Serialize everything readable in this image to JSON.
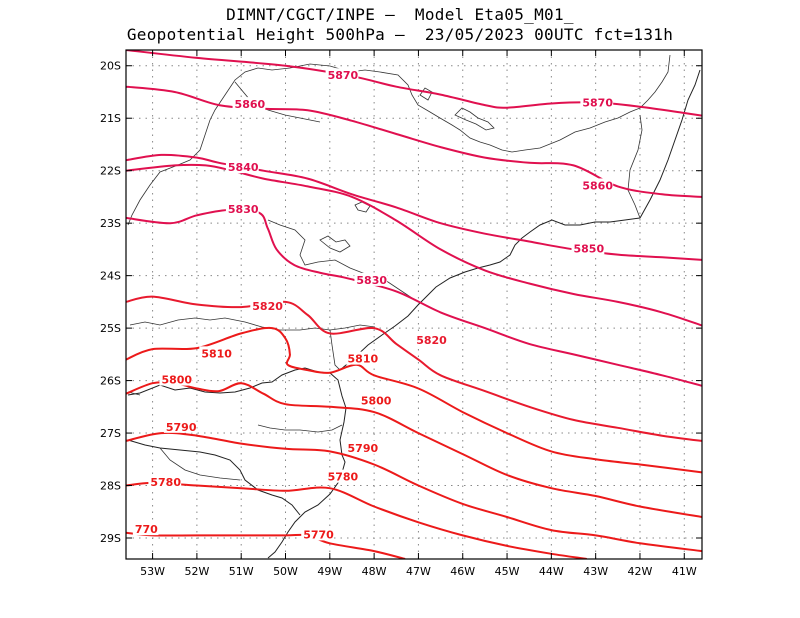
{
  "header": {
    "line1": "DIMNT/CGCT/INPE –  Model Eta05_M01_",
    "line2": "Geopotential Height 500hPa –  23/05/2023 00UTC fct=131h"
  },
  "map": {
    "lon_range": [
      -53.6,
      -40.6
    ],
    "lat_range": [
      -29.4,
      -19.7
    ],
    "lon_ticks": [
      {
        "value": -53,
        "label": "53W"
      },
      {
        "value": -52,
        "label": "52W"
      },
      {
        "value": -51,
        "label": "51W"
      },
      {
        "value": -50,
        "label": "50W"
      },
      {
        "value": -49,
        "label": "49W"
      },
      {
        "value": -48,
        "label": "48W"
      },
      {
        "value": -47,
        "label": "47W"
      },
      {
        "value": -46,
        "label": "46W"
      },
      {
        "value": -45,
        "label": "45W"
      },
      {
        "value": -44,
        "label": "44W"
      },
      {
        "value": -43,
        "label": "43W"
      },
      {
        "value": -42,
        "label": "42W"
      },
      {
        "value": -41,
        "label": "41W"
      }
    ],
    "lat_ticks": [
      {
        "value": -20,
        "label": "20S"
      },
      {
        "value": -21,
        "label": "21S"
      },
      {
        "value": -22,
        "label": "22S"
      },
      {
        "value": -23,
        "label": "23S"
      },
      {
        "value": -24,
        "label": "24S"
      },
      {
        "value": -25,
        "label": "25S"
      },
      {
        "value": -26,
        "label": "26S"
      },
      {
        "value": -27,
        "label": "27S"
      },
      {
        "value": -28,
        "label": "28S"
      },
      {
        "value": -29,
        "label": "29S"
      }
    ],
    "grid": "dotted",
    "contours": [
      {
        "level": "5870",
        "color": "#e0104f",
        "points": [
          [
            -53.6,
            -19.7
          ],
          [
            -52,
            -19.85
          ],
          [
            -50,
            -20.0
          ],
          [
            -48.5,
            -20.2
          ],
          [
            -47.5,
            -20.4
          ],
          [
            -46.5,
            -20.55
          ],
          [
            -45.5,
            -20.75
          ],
          [
            -45,
            -20.8
          ],
          [
            -44,
            -20.72
          ],
          [
            -43,
            -20.7
          ],
          [
            -42,
            -20.78
          ],
          [
            -41,
            -20.9
          ],
          [
            -40.6,
            -20.95
          ]
        ],
        "labels": [
          {
            "text": "5870",
            "lon": -49.05,
            "lat": -20.2
          },
          {
            "text": "5870",
            "lon": -43.3,
            "lat": -20.72
          }
        ]
      },
      {
        "level": "5860",
        "color": "#e0104f",
        "points": [
          [
            -53.6,
            -20.4
          ],
          [
            -52.5,
            -20.5
          ],
          [
            -51.5,
            -20.75
          ],
          [
            -50.5,
            -20.82
          ],
          [
            -49.5,
            -20.85
          ],
          [
            -48.5,
            -21.05
          ],
          [
            -47.5,
            -21.3
          ],
          [
            -46.5,
            -21.55
          ],
          [
            -45.5,
            -21.75
          ],
          [
            -44.5,
            -21.85
          ],
          [
            -43.5,
            -21.9
          ],
          [
            -42.5,
            -22.3
          ],
          [
            -41.5,
            -22.45
          ],
          [
            -40.6,
            -22.5
          ]
        ],
        "labels": [
          {
            "text": "5860",
            "lon": -51.15,
            "lat": -20.75
          },
          {
            "text": "5860",
            "lon": -43.3,
            "lat": -22.3
          }
        ]
      },
      {
        "level": "5850",
        "color": "#e0104f",
        "points": [
          [
            -53.6,
            -21.8
          ],
          [
            -52.8,
            -21.7
          ],
          [
            -52,
            -21.75
          ],
          [
            -51.5,
            -21.85
          ],
          [
            -50.5,
            -22.0
          ],
          [
            -49.5,
            -22.15
          ],
          [
            -48.5,
            -22.45
          ],
          [
            -47.5,
            -22.7
          ],
          [
            -46.5,
            -23.0
          ],
          [
            -45.5,
            -23.2
          ],
          [
            -44.5,
            -23.35
          ],
          [
            -43.5,
            -23.5
          ],
          [
            -42.5,
            -23.6
          ],
          [
            -41.5,
            -23.65
          ],
          [
            -40.6,
            -23.7
          ]
        ],
        "labels": [
          {
            "text": "5850",
            "lon": -43.5,
            "lat": -23.5
          }
        ]
      },
      {
        "level": "5840",
        "color": "#e0104f",
        "points": [
          [
            -53.6,
            -22.0
          ],
          [
            -52.5,
            -21.9
          ],
          [
            -51.8,
            -21.9
          ],
          [
            -51.2,
            -22.0
          ],
          [
            -50.5,
            -22.15
          ],
          [
            -49.5,
            -22.3
          ],
          [
            -48.5,
            -22.5
          ],
          [
            -47.5,
            -22.95
          ],
          [
            -46.5,
            -23.5
          ],
          [
            -45.5,
            -23.9
          ],
          [
            -44.5,
            -24.15
          ],
          [
            -43.5,
            -24.35
          ],
          [
            -42.5,
            -24.5
          ],
          [
            -41.5,
            -24.7
          ],
          [
            -40.6,
            -24.95
          ]
        ],
        "labels": [
          {
            "text": "5840",
            "lon": -51.3,
            "lat": -21.95
          }
        ]
      },
      {
        "level": "5830",
        "color": "#e0104f",
        "points": [
          [
            -53.6,
            -22.9
          ],
          [
            -52.6,
            -23.0
          ],
          [
            -52,
            -22.85
          ],
          [
            -51.3,
            -22.75
          ],
          [
            -50.6,
            -22.8
          ],
          [
            -50.4,
            -23.1
          ],
          [
            -50.2,
            -23.5
          ],
          [
            -49.8,
            -23.8
          ],
          [
            -49.2,
            -23.95
          ],
          [
            -48.6,
            -24.05
          ],
          [
            -47.5,
            -24.3
          ],
          [
            -46.5,
            -24.7
          ],
          [
            -45.5,
            -25.0
          ],
          [
            -44.5,
            -25.3
          ],
          [
            -43.5,
            -25.5
          ],
          [
            -42.5,
            -25.7
          ],
          [
            -41.5,
            -25.9
          ],
          [
            -40.6,
            -26.1
          ]
        ],
        "labels": [
          {
            "text": "5830",
            "lon": -51.3,
            "lat": -22.75
          },
          {
            "text": "5830",
            "lon": -48.4,
            "lat": -24.1
          }
        ]
      },
      {
        "level": "5820",
        "color": "#e81a2e",
        "points": [
          [
            -53.6,
            -24.5
          ],
          [
            -53,
            -24.4
          ],
          [
            -52,
            -24.55
          ],
          [
            -51,
            -24.6
          ],
          [
            -50,
            -24.5
          ],
          [
            -49.5,
            -24.75
          ],
          [
            -49,
            -25.1
          ],
          [
            -48,
            -25.0
          ],
          [
            -47.5,
            -25.3
          ],
          [
            -47,
            -25.6
          ],
          [
            -46.5,
            -25.9
          ],
          [
            -45.5,
            -26.2
          ],
          [
            -44.5,
            -26.5
          ],
          [
            -43.5,
            -26.75
          ],
          [
            -42.5,
            -26.9
          ],
          [
            -41.5,
            -27.05
          ],
          [
            -40.6,
            -27.15
          ]
        ],
        "labels": [
          {
            "text": "5820",
            "lon": -50.75,
            "lat": -24.6
          },
          {
            "text": "5820",
            "lon": -47.05,
            "lat": -25.25
          }
        ]
      },
      {
        "level": "5810",
        "color": "#ec1a1a",
        "points": [
          [
            -53.6,
            -25.6
          ],
          [
            -53,
            -25.4
          ],
          [
            -52,
            -25.38
          ],
          [
            -51,
            -25.1
          ],
          [
            -50.3,
            -25.0
          ],
          [
            -50,
            -25.2
          ],
          [
            -49.9,
            -25.5
          ],
          [
            -49.95,
            -25.7
          ],
          [
            -49.5,
            -25.8
          ],
          [
            -49,
            -25.85
          ],
          [
            -48.4,
            -25.7
          ],
          [
            -48,
            -25.9
          ],
          [
            -47,
            -26.15
          ],
          [
            -46,
            -26.6
          ],
          [
            -45,
            -27.0
          ],
          [
            -44,
            -27.35
          ],
          [
            -43,
            -27.5
          ],
          [
            -42,
            -27.6
          ],
          [
            -40.6,
            -27.75
          ]
        ],
        "labels": [
          {
            "text": "5810",
            "lon": -51.9,
            "lat": -25.5
          },
          {
            "text": "5810",
            "lon": -48.6,
            "lat": -25.6
          }
        ]
      },
      {
        "level": "5800",
        "color": "#ec1a1a",
        "points": [
          [
            -53.6,
            -26.25
          ],
          [
            -53,
            -26.05
          ],
          [
            -52.5,
            -26.05
          ],
          [
            -52,
            -26.15
          ],
          [
            -51.5,
            -26.2
          ],
          [
            -51,
            -26.05
          ],
          [
            -50.5,
            -26.25
          ],
          [
            -50,
            -26.45
          ],
          [
            -49,
            -26.5
          ],
          [
            -48,
            -26.6
          ],
          [
            -47,
            -27.0
          ],
          [
            -46,
            -27.4
          ],
          [
            -45,
            -27.8
          ],
          [
            -44,
            -28.05
          ],
          [
            -43,
            -28.2
          ],
          [
            -42,
            -28.4
          ],
          [
            -40.6,
            -28.6
          ]
        ],
        "labels": [
          {
            "text": "5800",
            "lon": -52.8,
            "lat": -26.0
          },
          {
            "text": "5800",
            "lon": -48.3,
            "lat": -26.4
          }
        ]
      },
      {
        "level": "5790",
        "color": "#ec1a1a",
        "points": [
          [
            -53.6,
            -27.15
          ],
          [
            -52.8,
            -27.0
          ],
          [
            -52,
            -27.05
          ],
          [
            -51,
            -27.2
          ],
          [
            -50,
            -27.3
          ],
          [
            -49,
            -27.35
          ],
          [
            -48,
            -27.6
          ],
          [
            -47,
            -28.0
          ],
          [
            -46,
            -28.35
          ],
          [
            -45,
            -28.6
          ],
          [
            -44,
            -28.85
          ],
          [
            -43,
            -28.95
          ],
          [
            -42,
            -29.1
          ],
          [
            -40.6,
            -29.25
          ]
        ],
        "labels": [
          {
            "text": "5790",
            "lon": -52.7,
            "lat": -26.9
          },
          {
            "text": "5790",
            "lon": -48.6,
            "lat": -27.3
          }
        ]
      },
      {
        "level": "5780",
        "color": "#ec1a1a",
        "points": [
          [
            -53.6,
            -28.0
          ],
          [
            -53,
            -27.95
          ],
          [
            -52,
            -28.0
          ],
          [
            -51,
            -28.05
          ],
          [
            -50,
            -28.1
          ],
          [
            -49,
            -28.05
          ],
          [
            -48,
            -28.4
          ],
          [
            -47,
            -28.7
          ],
          [
            -46,
            -28.95
          ],
          [
            -45,
            -29.15
          ],
          [
            -44,
            -29.3
          ],
          [
            -43.2,
            -29.4
          ]
        ],
        "labels": [
          {
            "text": "5780",
            "lon": -53.05,
            "lat": -27.95
          },
          {
            "text": "5780",
            "lon": -49.05,
            "lat": -27.85
          }
        ]
      },
      {
        "level": "5770",
        "color": "#ec1a1a",
        "points": [
          [
            -53.6,
            -28.9
          ],
          [
            -53,
            -28.95
          ],
          [
            -52,
            -28.95
          ],
          [
            -51,
            -28.95
          ],
          [
            -50,
            -28.95
          ],
          [
            -49.5,
            -28.95
          ],
          [
            -49,
            -29.1
          ],
          [
            -48,
            -29.25
          ],
          [
            -47.3,
            -29.4
          ]
        ],
        "labels": [
          {
            "text": "770",
            "lon": -53.4,
            "lat": -28.85
          },
          {
            "text": "5770",
            "lon": -49.6,
            "lat": -28.95
          }
        ]
      }
    ]
  }
}
